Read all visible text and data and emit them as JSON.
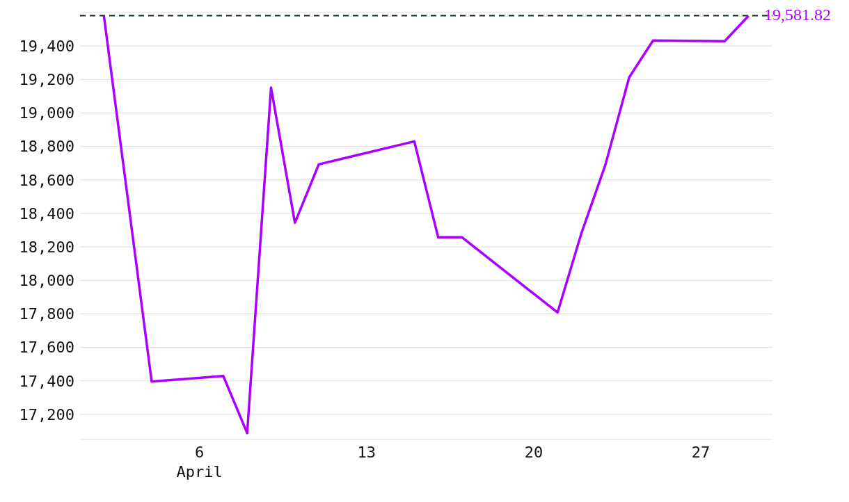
{
  "chart_data": {
    "type": "line",
    "x": [
      "--04-02",
      "--04-04",
      "--04-07",
      "--04-08",
      "--04-09",
      "--04-10",
      "--04-11",
      "--04-15",
      "--04-16",
      "--04-17",
      "--04-21",
      "--04-22",
      "--04-23",
      "--04-24",
      "--04-25",
      "--04-28",
      "--04-29"
    ],
    "series": [
      {
        "color": "#aa00ff",
        "values": [
          19580,
          17396,
          17429,
          17088,
          19151,
          18344,
          18693,
          18830,
          18257,
          18257,
          17808,
          18282,
          18689,
          19213,
          19433,
          19429,
          19580
        ]
      }
    ],
    "xlim": [
      "--04-01",
      "--04-30"
    ],
    "xticks": [
      {
        "value": "--04-06",
        "label": "6\nApril"
      },
      {
        "value": "--04-13",
        "label": "13"
      },
      {
        "value": "--04-20",
        "label": "20"
      },
      {
        "value": "--04-27",
        "label": "27"
      }
    ],
    "ylim": [
      17050,
      19600
    ],
    "yticks": [
      {
        "value": 17200,
        "label": "17,200"
      },
      {
        "value": 17400,
        "label": "17,400"
      },
      {
        "value": 17600,
        "label": "17,600"
      },
      {
        "value": 17800,
        "label": "17,800"
      },
      {
        "value": 18000,
        "label": "18,000"
      },
      {
        "value": 18200,
        "label": "18,200"
      },
      {
        "value": 18400,
        "label": "18,400"
      },
      {
        "value": 18600,
        "label": "18,600"
      },
      {
        "value": 18800,
        "label": "18,800"
      },
      {
        "value": 19000,
        "label": "19,000"
      },
      {
        "value": 19200,
        "label": "19,200"
      },
      {
        "value": 19400,
        "label": "19,400"
      }
    ],
    "grid": "y",
    "marker": "none",
    "line_style": "solid",
    "ref_lines": [
      {
        "axis": "y",
        "value": 19581.82,
        "label": "19,581.82",
        "color": "#0b2e13",
        "line_style": "dashed"
      }
    ]
  }
}
